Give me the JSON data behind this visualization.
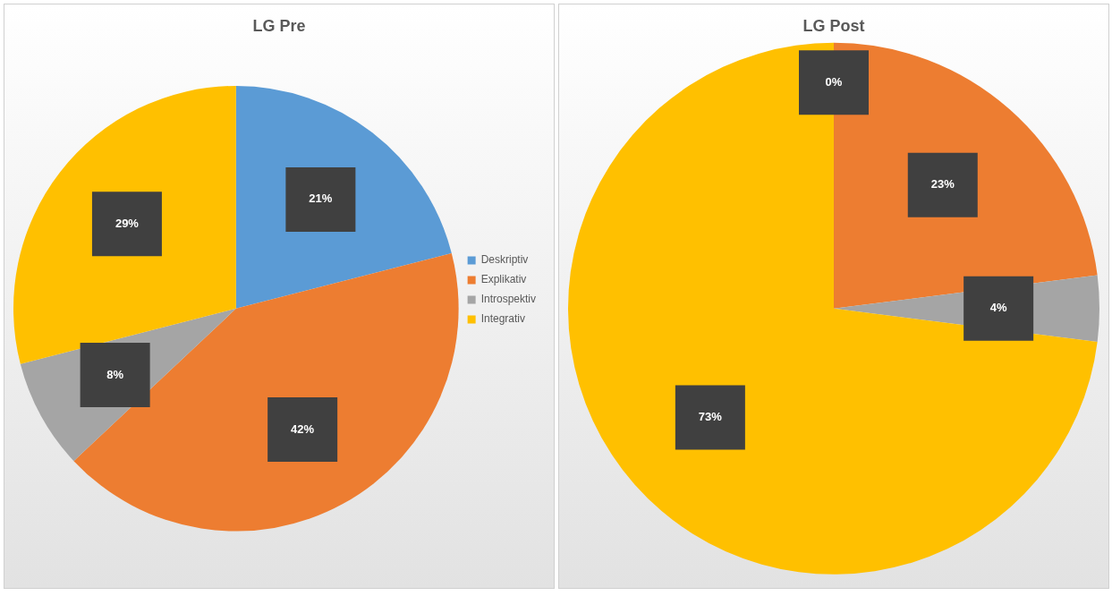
{
  "chart_data": [
    {
      "type": "pie",
      "title": "LG Pre",
      "categories": [
        "Deskriptiv",
        "Explikativ",
        "Introspektiv",
        "Integrativ"
      ],
      "values": [
        21,
        42,
        8,
        29
      ],
      "colors": [
        "#5b9bd5",
        "#ed7d31",
        "#a5a5a5",
        "#ffc000"
      ],
      "value_labels": [
        "21%",
        "42%",
        "8%",
        "29%"
      ],
      "legend": "right"
    },
    {
      "type": "pie",
      "title": "LG Post",
      "categories": [
        null,
        null,
        null,
        null
      ],
      "values": [
        0,
        23,
        4,
        73
      ],
      "colors": [
        "#5b9bd5",
        "#ed7d31",
        "#a5a5a5",
        "#ffc000"
      ],
      "value_labels": [
        "0%",
        "23%",
        "4%",
        "73%"
      ]
    }
  ]
}
